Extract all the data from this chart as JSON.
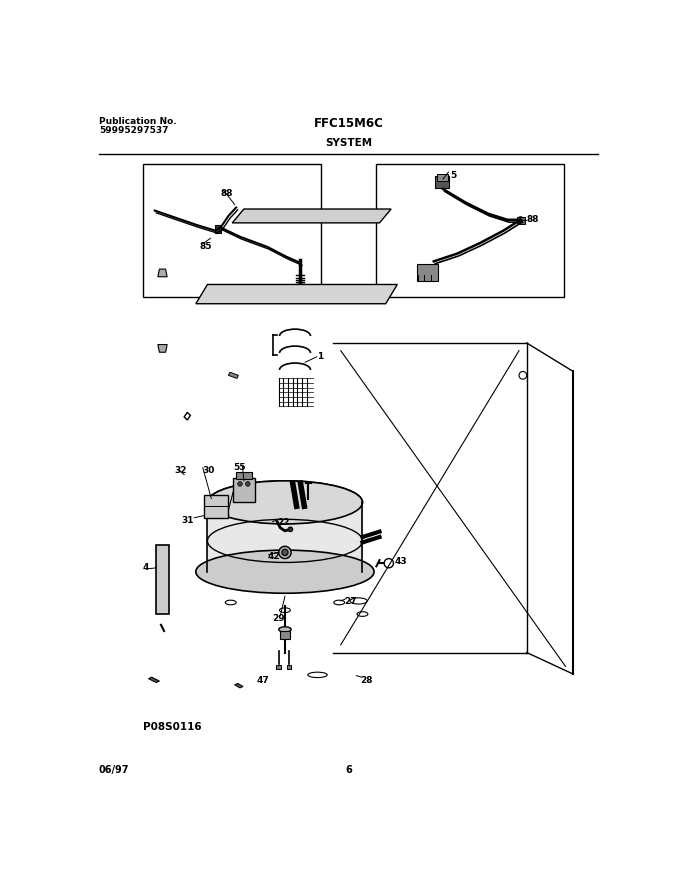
{
  "title": "FFC15M6C",
  "subtitle": "SYSTEM",
  "pub_label": "Publication No.",
  "pub_number": "59995297537",
  "date": "06/97",
  "page": "6",
  "image_code": "P08S0116",
  "bg_color": "#ffffff",
  "line_color": "#000000",
  "fig_width": 6.8,
  "fig_height": 8.82,
  "dpi": 100
}
